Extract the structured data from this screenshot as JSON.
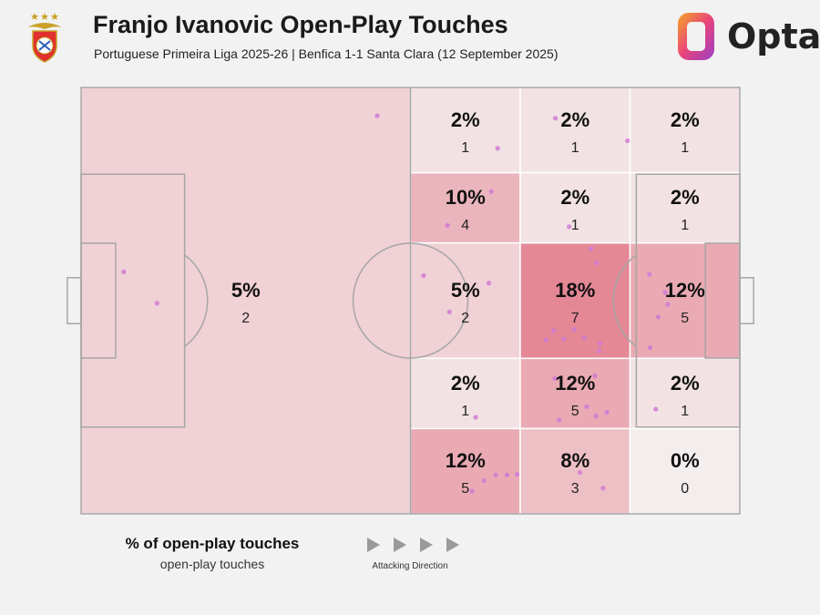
{
  "header": {
    "title": "Franjo Ivanovic Open-Play Touches",
    "subtitle": "Portuguese Primeira Liga 2025-26 | Benfica 1-1 Santa Clara (12 September 2025)",
    "brand": "Opta"
  },
  "legend": {
    "title": "% of open-play touches",
    "subtitle": "open-play touches",
    "direction_label": "Attacking Direction"
  },
  "colors": {
    "background": "#f2f2f2",
    "zone_scale_low": "#f4eded",
    "zone_scale_high": "#e48896",
    "touch_dot": "#d07ad6",
    "pitch_line": "#a6a6a6",
    "brand_orange": "#f5a623",
    "brand_purple": "#9b3ec8",
    "crest_red": "#e03030"
  },
  "chart_data": {
    "type": "heatmap",
    "pitch_length": 105,
    "pitch_width": 68,
    "attacking_direction": "right",
    "zones": [
      {
        "id": "own-half",
        "x": [
          0,
          52.5
        ],
        "y": [
          0,
          68
        ],
        "pct": "5%",
        "count": "2",
        "share": 5
      },
      {
        "id": "r1c1",
        "x": [
          52.5,
          70
        ],
        "y": [
          54.4,
          68
        ],
        "pct": "2%",
        "count": "1",
        "share": 2
      },
      {
        "id": "r1c2",
        "x": [
          70,
          87.5
        ],
        "y": [
          54.4,
          68
        ],
        "pct": "2%",
        "count": "1",
        "share": 2
      },
      {
        "id": "r1c3",
        "x": [
          87.5,
          105
        ],
        "y": [
          54.4,
          68
        ],
        "pct": "2%",
        "count": "1",
        "share": 2
      },
      {
        "id": "r2c1",
        "x": [
          52.5,
          70
        ],
        "y": [
          43.2,
          54.4
        ],
        "pct": "10%",
        "count": "4",
        "share": 10
      },
      {
        "id": "r2c2",
        "x": [
          70,
          87.5
        ],
        "y": [
          43.2,
          54.4
        ],
        "pct": "2%",
        "count": "1",
        "share": 2
      },
      {
        "id": "r2c3",
        "x": [
          87.5,
          105
        ],
        "y": [
          43.2,
          54.4
        ],
        "pct": "2%",
        "count": "1",
        "share": 2
      },
      {
        "id": "r3c1",
        "x": [
          52.5,
          70
        ],
        "y": [
          24.8,
          43.2
        ],
        "pct": "5%",
        "count": "2",
        "share": 5
      },
      {
        "id": "r3c2",
        "x": [
          70,
          87.5
        ],
        "y": [
          24.8,
          43.2
        ],
        "pct": "18%",
        "count": "7",
        "share": 18
      },
      {
        "id": "r3c3",
        "x": [
          87.5,
          105
        ],
        "y": [
          24.8,
          43.2
        ],
        "pct": "12%",
        "count": "5",
        "share": 12
      },
      {
        "id": "r4c1",
        "x": [
          52.5,
          70
        ],
        "y": [
          13.6,
          24.8
        ],
        "pct": "2%",
        "count": "1",
        "share": 2
      },
      {
        "id": "r4c2",
        "x": [
          70,
          87.5
        ],
        "y": [
          13.6,
          24.8
        ],
        "pct": "12%",
        "count": "5",
        "share": 12
      },
      {
        "id": "r4c3",
        "x": [
          87.5,
          105
        ],
        "y": [
          13.6,
          24.8
        ],
        "pct": "2%",
        "count": "1",
        "share": 2
      },
      {
        "id": "r5c1",
        "x": [
          52.5,
          70
        ],
        "y": [
          0,
          13.6
        ],
        "pct": "12%",
        "count": "5",
        "share": 12
      },
      {
        "id": "r5c2",
        "x": [
          70,
          87.5
        ],
        "y": [
          0,
          13.6
        ],
        "pct": "8%",
        "count": "3",
        "share": 8
      },
      {
        "id": "r5c3",
        "x": [
          87.5,
          105
        ],
        "y": [
          0,
          13.6
        ],
        "pct": "0%",
        "count": "0",
        "share": 0
      }
    ],
    "touches": [
      [
        47.2,
        63.5
      ],
      [
        66.4,
        58.3
      ],
      [
        75.6,
        63.1
      ],
      [
        87.1,
        59.5
      ],
      [
        65.4,
        51.4
      ],
      [
        58.4,
        46.0
      ],
      [
        77.8,
        45.8
      ],
      [
        6.8,
        38.6
      ],
      [
        12.1,
        33.6
      ],
      [
        54.6,
        38.0
      ],
      [
        58.7,
        32.2
      ],
      [
        65.0,
        36.8
      ],
      [
        81.3,
        42.3
      ],
      [
        82.2,
        40.0
      ],
      [
        75.3,
        29.2
      ],
      [
        78.6,
        29.4
      ],
      [
        80.2,
        28.1
      ],
      [
        82.7,
        27.2
      ],
      [
        74.1,
        27.7
      ],
      [
        76.9,
        27.9
      ],
      [
        82.6,
        26.0
      ],
      [
        90.6,
        38.2
      ],
      [
        93.1,
        35.3
      ],
      [
        93.5,
        33.4
      ],
      [
        92.0,
        31.4
      ],
      [
        90.7,
        26.5
      ],
      [
        62.9,
        15.4
      ],
      [
        75.5,
        21.6
      ],
      [
        81.9,
        22.0
      ],
      [
        80.6,
        17.1
      ],
      [
        83.8,
        16.2
      ],
      [
        76.2,
        15.0
      ],
      [
        82.1,
        15.6
      ],
      [
        91.6,
        16.7
      ],
      [
        64.2,
        5.3
      ],
      [
        66.1,
        6.2
      ],
      [
        67.9,
        6.2
      ],
      [
        69.5,
        6.3
      ],
      [
        62.3,
        3.6
      ],
      [
        79.5,
        6.6
      ],
      [
        83.2,
        4.1
      ]
    ]
  }
}
